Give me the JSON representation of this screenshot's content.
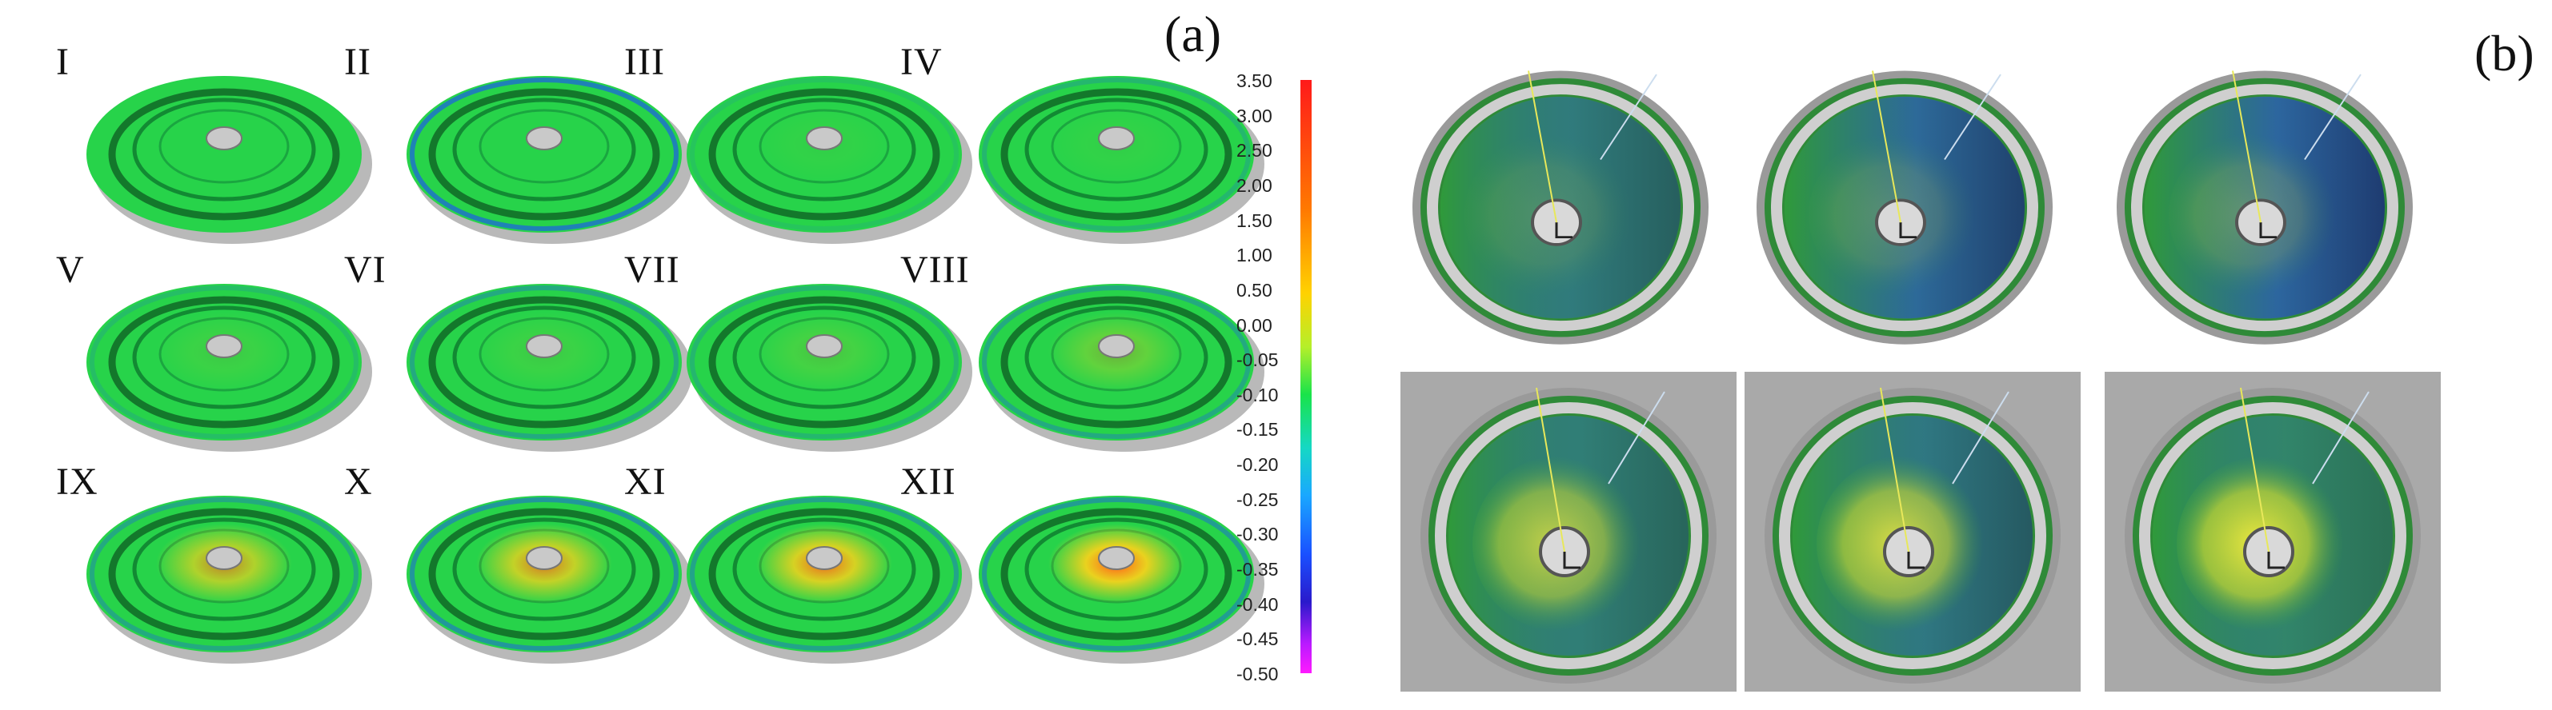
{
  "panel_a": {
    "letter": "(a)",
    "disks": [
      {
        "label": "I",
        "hot": 0.0,
        "cool": 0.0
      },
      {
        "label": "II",
        "hot": 0.0,
        "cool": 0.6
      },
      {
        "label": "III",
        "hot": 0.05,
        "cool": 0.1
      },
      {
        "label": "IV",
        "hot": 0.05,
        "cool": 0.2
      },
      {
        "label": "V",
        "hot": 0.1,
        "cool": 0.15
      },
      {
        "label": "VI",
        "hot": 0.1,
        "cool": 0.3
      },
      {
        "label": "VII",
        "hot": 0.15,
        "cool": 0.2
      },
      {
        "label": "VIII",
        "hot": 0.3,
        "cool": 0.3
      },
      {
        "label": "IX",
        "hot": 0.7,
        "cool": 0.3
      },
      {
        "label": "X",
        "hot": 0.8,
        "cool": 0.45
      },
      {
        "label": "XI",
        "hot": 0.9,
        "cool": 0.35
      },
      {
        "label": "XII",
        "hot": 1.0,
        "cool": 0.4
      }
    ],
    "scale_ticks": [
      "3.50",
      "3.00",
      "2.50",
      "2.00",
      "1.50",
      "1.00",
      "0.50",
      "0.00",
      "-0.05",
      "-0.10",
      "-0.15",
      "-0.20",
      "-0.25",
      "-0.30",
      "-0.35",
      "-0.40",
      "-0.45",
      "-0.50"
    ],
    "colors": {
      "green": "#27d34a",
      "hot": "#ff5a1a",
      "warm": "#ffd21a",
      "cool": "#1a4dff",
      "shadow": "#b9b9b9"
    }
  },
  "panel_b": {
    "letter": "(b)",
    "photos": [
      {
        "yellow": 0.15,
        "blue": 0.55,
        "backdrop": "white"
      },
      {
        "yellow": 0.2,
        "blue": 0.8,
        "backdrop": "white"
      },
      {
        "yellow": 0.25,
        "blue": 0.85,
        "backdrop": "white"
      },
      {
        "yellow": 0.7,
        "blue": 0.5,
        "backdrop": "grey"
      },
      {
        "yellow": 0.8,
        "blue": 0.6,
        "backdrop": "grey"
      },
      {
        "yellow": 0.9,
        "blue": 0.4,
        "backdrop": "grey"
      }
    ]
  }
}
